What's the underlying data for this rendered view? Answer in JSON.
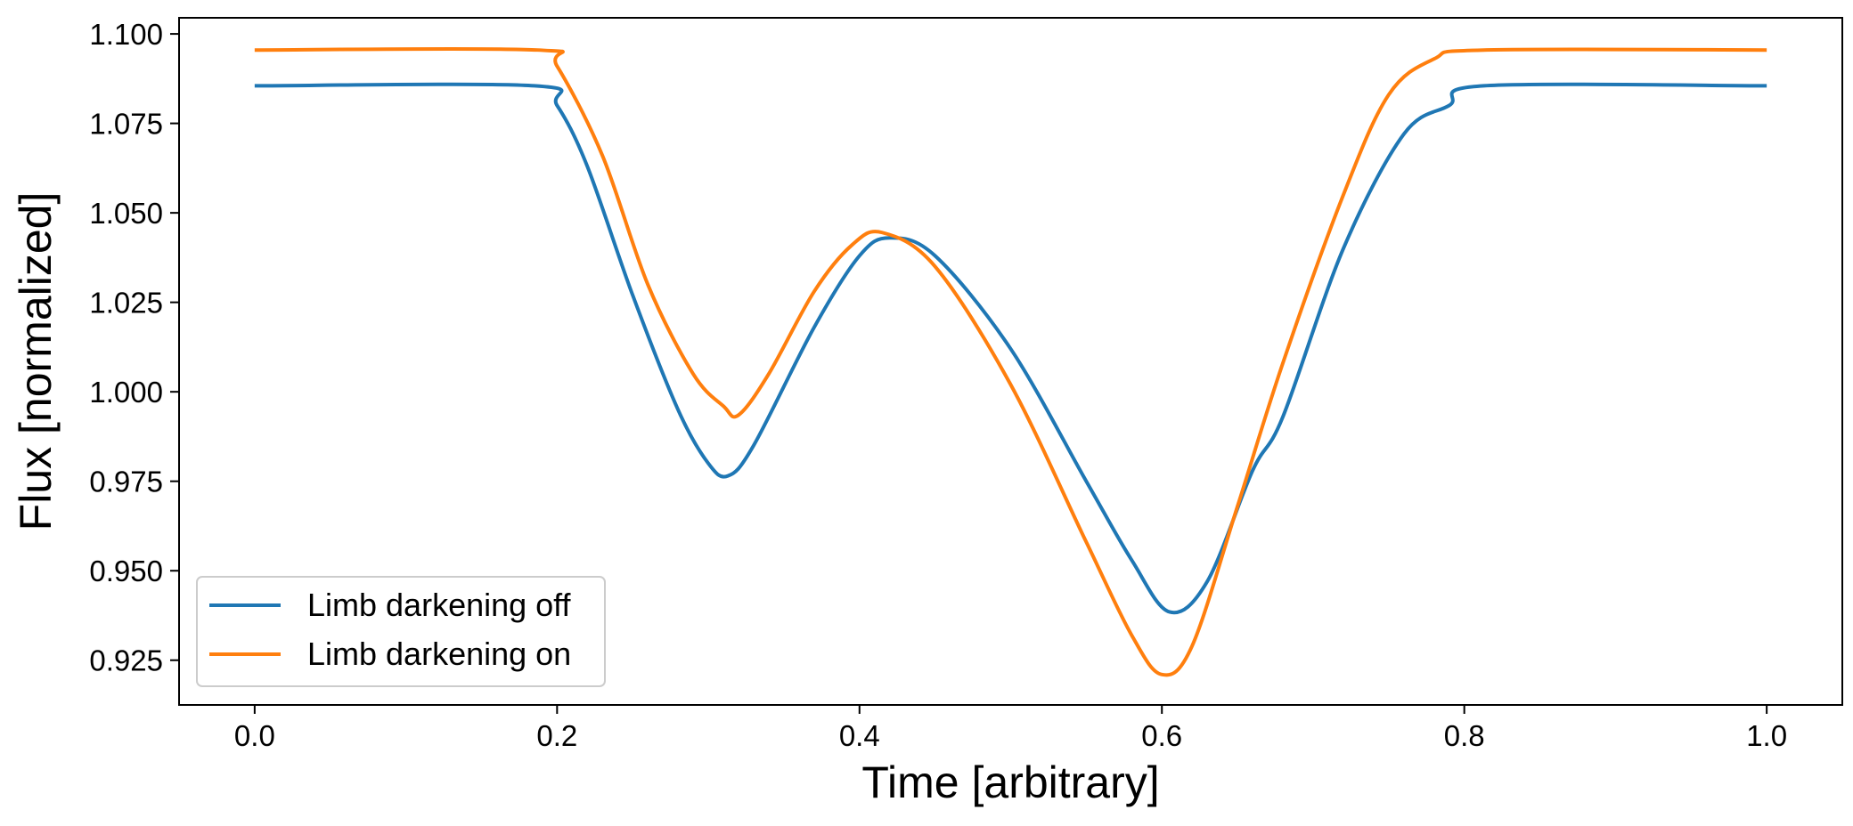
{
  "chart_data": {
    "type": "line",
    "title": "",
    "xlabel": "Time [arbitrary]",
    "ylabel": "Flux [normalized]",
    "xlim": [
      -0.05,
      1.05
    ],
    "ylim": [
      0.9125,
      1.1045
    ],
    "xticks": [
      0.0,
      0.2,
      0.4,
      0.6,
      0.8,
      1.0
    ],
    "xtick_labels": [
      "0.0",
      "0.2",
      "0.4",
      "0.6",
      "0.8",
      "1.0"
    ],
    "yticks": [
      0.925,
      0.95,
      0.975,
      1.0,
      1.025,
      1.05,
      1.075,
      1.1
    ],
    "ytick_labels": [
      "0.925",
      "0.950",
      "0.975",
      "1.000",
      "1.025",
      "1.050",
      "1.075",
      "1.100"
    ],
    "grid": false,
    "legend_position": "lower-left",
    "series": [
      {
        "name": "Limb darkening off",
        "color": "#1f77b4",
        "x": [
          0.0,
          0.185,
          0.2,
          0.22,
          0.25,
          0.28,
          0.3,
          0.313,
          0.33,
          0.37,
          0.4,
          0.42,
          0.45,
          0.5,
          0.55,
          0.58,
          0.605,
          0.63,
          0.66,
          0.68,
          0.72,
          0.76,
          0.79,
          0.813,
          1.0
        ],
        "y": [
          1.0855,
          1.0855,
          1.08,
          1.063,
          1.027,
          0.995,
          0.98,
          0.9765,
          0.985,
          1.018,
          1.038,
          1.043,
          1.038,
          1.012,
          0.975,
          0.953,
          0.9385,
          0.947,
          0.978,
          0.993,
          1.04,
          1.072,
          1.08,
          1.0855,
          1.0855
        ]
      },
      {
        "name": "Limb darkening on",
        "color": "#ff7f0e",
        "x": [
          0.0,
          0.187,
          0.2,
          0.23,
          0.26,
          0.29,
          0.31,
          0.32,
          0.34,
          0.37,
          0.395,
          0.415,
          0.45,
          0.5,
          0.55,
          0.58,
          0.6,
          0.62,
          0.65,
          0.68,
          0.72,
          0.75,
          0.78,
          0.813,
          1.0
        ],
        "y": [
          1.0955,
          1.0955,
          1.091,
          1.066,
          1.03,
          1.005,
          0.996,
          0.9935,
          1.005,
          1.028,
          1.041,
          1.0445,
          1.035,
          1.002,
          0.958,
          0.932,
          0.921,
          0.929,
          0.968,
          1.008,
          1.055,
          1.083,
          1.093,
          1.0955,
          1.0955
        ]
      }
    ]
  }
}
